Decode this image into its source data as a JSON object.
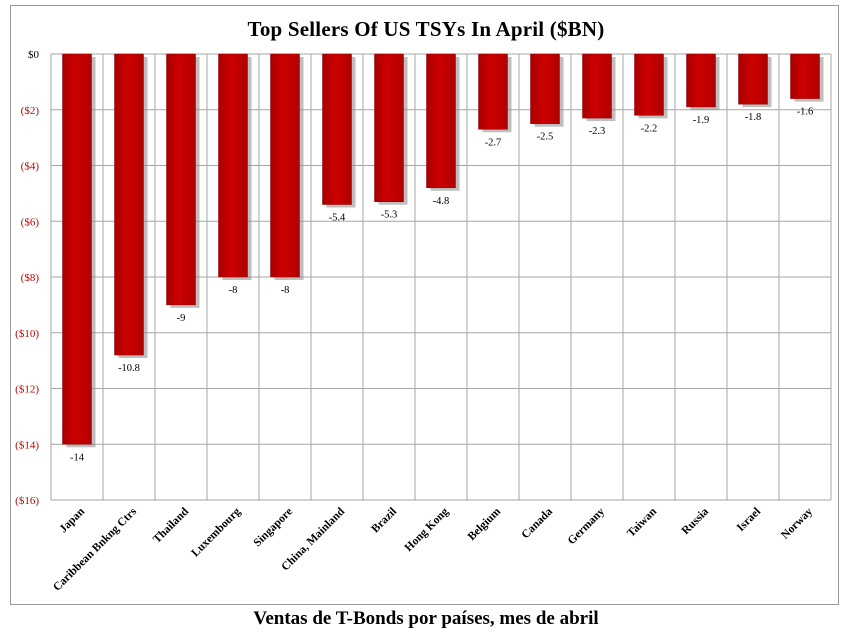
{
  "title": "Top Sellers  Of  US TSYs In April ($BN)",
  "caption": "Ventas de T-Bonds por países, mes de abril",
  "colors": {
    "bar": "#c00000",
    "bar_shadow": "#8a8a8a",
    "grid": "#a6a6a6",
    "neg_tick": "#c00000"
  },
  "chart_data": {
    "type": "bar",
    "title": "Top Sellers  Of  US TSYs In April ($BN)",
    "categories": [
      "Japan",
      "Caribbean Bnkng Ctrs",
      "Thailand",
      "Luxembourg",
      "Singapore",
      "China, Mainland",
      "Brazil",
      "Hong Kong",
      "Belgium",
      "Canada",
      "Germany",
      "Taiwan",
      "Russia",
      "Israel",
      "Norway"
    ],
    "values": [
      -14,
      -10.8,
      -9,
      -8,
      -8,
      -5.4,
      -5.3,
      -4.8,
      -2.7,
      -2.5,
      -2.3,
      -2.2,
      -1.9,
      -1.8,
      -1.6
    ],
    "data_labels": [
      "-14",
      "-10.8",
      "-9",
      "-8",
      "-8",
      "-5.4",
      "-5.3",
      "-4.8",
      "-2.7",
      "-2.5",
      "-2.3",
      "-2.2",
      "-1.9",
      "-1.8",
      "-1.6"
    ],
    "ylim": [
      -16,
      0
    ],
    "yticks": [
      0,
      -2,
      -4,
      -6,
      -8,
      -10,
      -12,
      -14,
      -16
    ],
    "ytick_labels": [
      "$0",
      "($2)",
      "($4)",
      "($6)",
      "($8)",
      "($10)",
      "($12)",
      "($14)",
      "($16)"
    ],
    "grid": true,
    "legend": "none"
  }
}
